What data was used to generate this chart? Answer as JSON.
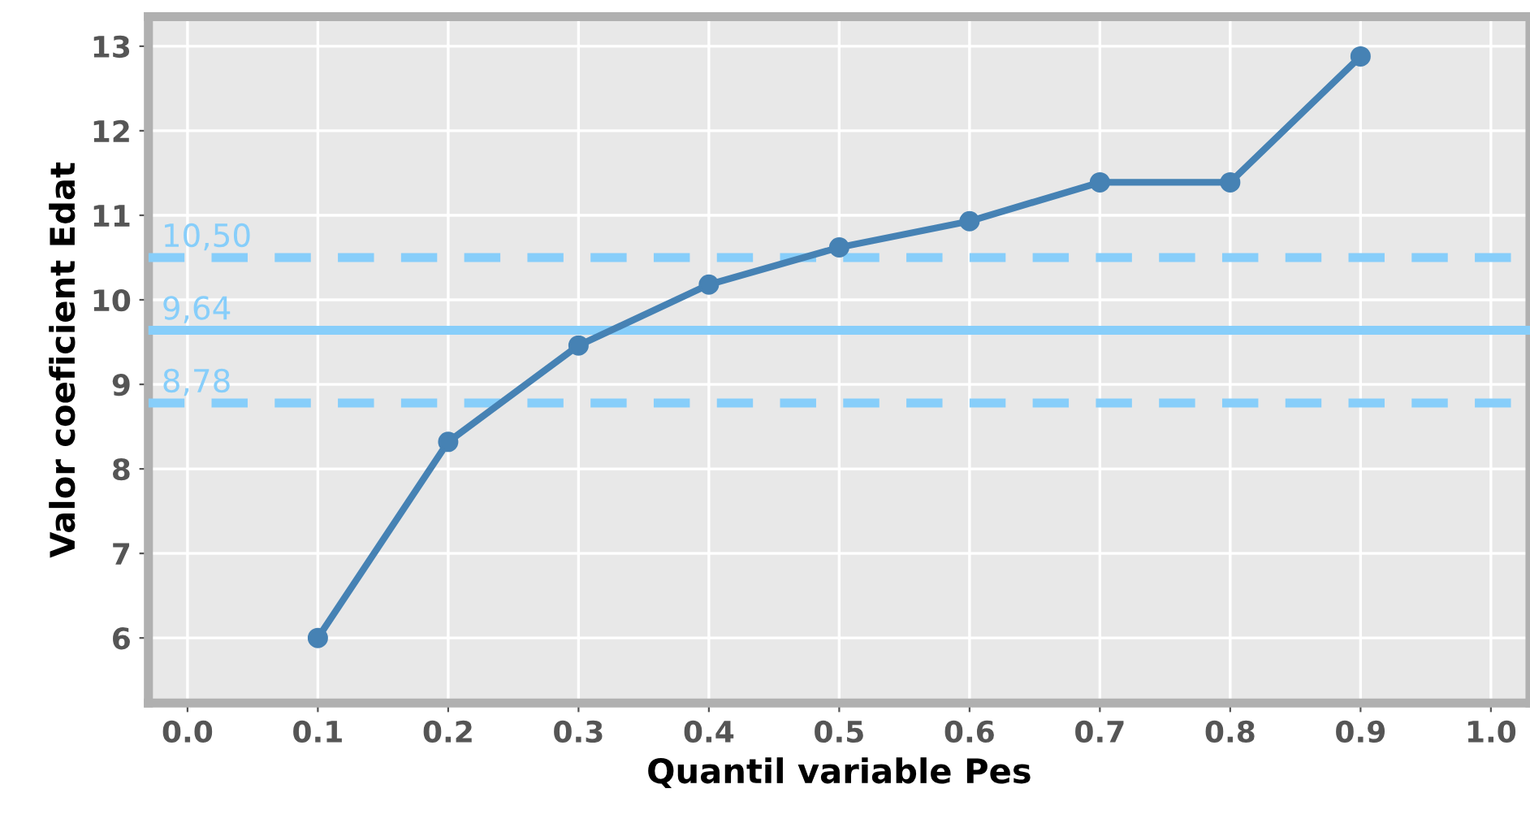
{
  "chart_data": {
    "type": "line",
    "xlabel": "Quantil variable Pes",
    "ylabel": "Valor coeficient Edat",
    "x": [
      0.1,
      0.2,
      0.3,
      0.4,
      0.5,
      0.6,
      0.7,
      0.8,
      0.9
    ],
    "series": [
      {
        "color": "#4682b4",
        "values": [
          6.0,
          8.32,
          9.46,
          10.18,
          10.62,
          10.93,
          11.39,
          11.39,
          12.88
        ]
      }
    ],
    "xlim": [
      -0.03,
      1.03
    ],
    "ylim": [
      5.23,
      13.35
    ],
    "xticks": [
      {
        "value": 0.0,
        "label": "0.0"
      },
      {
        "value": 0.1,
        "label": "0.1"
      },
      {
        "value": 0.2,
        "label": "0.2"
      },
      {
        "value": 0.3,
        "label": "0.3"
      },
      {
        "value": 0.4,
        "label": "0.4"
      },
      {
        "value": 0.5,
        "label": "0.5"
      },
      {
        "value": 0.6,
        "label": "0.6"
      },
      {
        "value": 0.7,
        "label": "0.7"
      },
      {
        "value": 0.8,
        "label": "0.8"
      },
      {
        "value": 0.9,
        "label": "0.9"
      },
      {
        "value": 1.0,
        "label": "1.0"
      }
    ],
    "yticks": [
      6,
      7,
      8,
      9,
      10,
      11,
      12,
      13
    ],
    "ref_lines": [
      {
        "axis": "y",
        "value": 10.5,
        "label": "10,50",
        "color": "#87cefa",
        "line_style": "dashed"
      },
      {
        "axis": "y",
        "value": 9.64,
        "label": "9,64",
        "color": "#87cefa",
        "line_style": "solid"
      },
      {
        "axis": "y",
        "value": 8.78,
        "label": "8,78",
        "color": "#87cefa",
        "line_style": "dashed"
      }
    ],
    "grid": true,
    "marker": "circle",
    "line_style": "solid",
    "legend": false
  }
}
